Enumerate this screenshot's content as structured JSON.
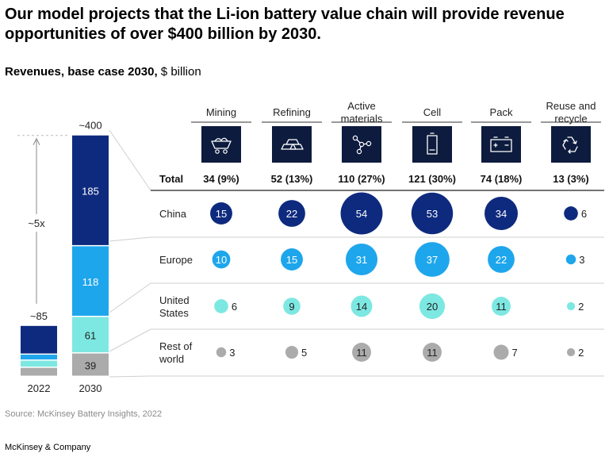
{
  "title": "Our model projects that the Li-ion battery value chain will provide revenue opportunities of over $400 billion by 2030.",
  "subtitle_bold": "Revenues, base case 2030,",
  "subtitle_unit": " $ billion",
  "source": "Source: McKinsey Battery Insights, 2022",
  "brand": "McKinsey & Company",
  "colors": {
    "china": "#0e2a7e",
    "europe": "#1ea6ec",
    "us": "#7de8e2",
    "row": "#ababab"
  },
  "chart_data": [
    {
      "type": "bar",
      "stacked": true,
      "categories": [
        "2022",
        "2030"
      ],
      "totals_labels": [
        "~85",
        "~400"
      ],
      "growth_label": "~5x",
      "series": [
        {
          "key": "china",
          "values": [
            48,
            185
          ]
        },
        {
          "key": "europe",
          "values": [
            10,
            118
          ]
        },
        {
          "key": "us",
          "values": [
            12,
            61
          ]
        },
        {
          "key": "row",
          "values": [
            15,
            39
          ]
        }
      ]
    },
    {
      "type": "scatter",
      "columns": [
        "Mining",
        "Refining",
        "Active\nmaterials",
        "Cell",
        "Pack",
        "Reuse and\nrecycle"
      ],
      "icons": [
        "mining-cart-icon",
        "refining-bars-icon",
        "molecule-icon",
        "battery-cell-icon",
        "battery-pack-icon",
        "recycle-icon"
      ],
      "total_label": "Total",
      "totals": [
        "34 (9%)",
        "52 (13%)",
        "110 (27%)",
        "121 (30%)",
        "74 (18%)",
        "13 (3%)"
      ],
      "rows": [
        {
          "key": "china",
          "name": "China",
          "values": [
            15,
            22,
            54,
            53,
            34,
            6
          ]
        },
        {
          "key": "europe",
          "name": "Europe",
          "values": [
            10,
            15,
            31,
            37,
            22,
            3
          ]
        },
        {
          "key": "us",
          "name": "United\nStates",
          "values": [
            6,
            9,
            14,
            20,
            11,
            2
          ]
        },
        {
          "key": "row",
          "name": "Rest of\nworld",
          "values": [
            3,
            5,
            11,
            11,
            7,
            2
          ]
        }
      ]
    }
  ]
}
